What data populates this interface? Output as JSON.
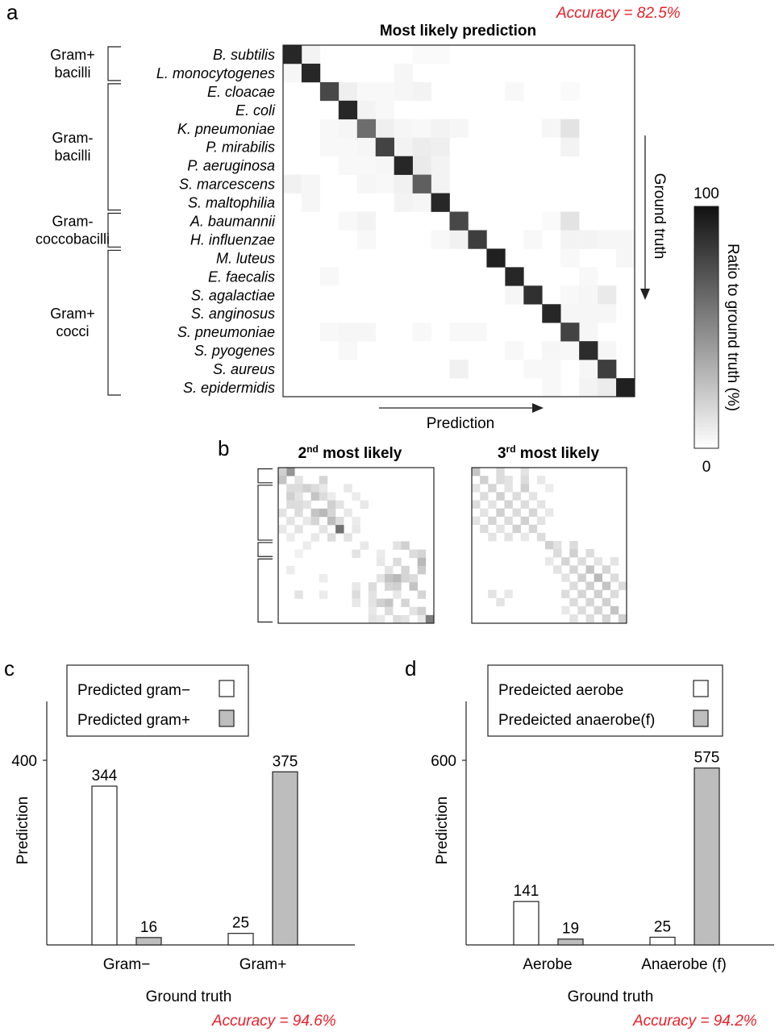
{
  "panels": {
    "a": "a",
    "b": "b",
    "c": "c",
    "d": "d"
  },
  "accuracy": {
    "a": "Accuracy = 82.5%",
    "c": "Accuracy = 94.6%",
    "d": "Accuracy = 94.2%"
  },
  "chart_data": [
    {
      "type": "heatmap",
      "title": "Most likely prediction",
      "xlabel": "Prediction",
      "ylabel": "Ground truth",
      "colorbar": {
        "label": "Ratio to ground truth (%)",
        "min": 0,
        "max": 100,
        "colors": [
          "#ffffff",
          "#111111"
        ]
      },
      "groups": [
        {
          "label": [
            "Gram+",
            "bacilli"
          ],
          "start": 0,
          "end": 1
        },
        {
          "label": [
            "Gram-",
            "bacilli"
          ],
          "start": 2,
          "end": 8
        },
        {
          "label": [
            "Gram-",
            "coccobacilli"
          ],
          "start": 9,
          "end": 10
        },
        {
          "label": [
            "Gram+",
            "cocci"
          ],
          "start": 11,
          "end": 18
        }
      ],
      "categories": [
        "B. subtilis",
        "L. monocytogenes",
        "E. cloacae",
        "E. coli",
        "K. pneumoniae",
        "P. mirabilis",
        "P. aeruginosa",
        "S. marcescens",
        "S. maltophilia",
        "A. baumannii",
        "H. influenzae",
        "M. luteus",
        "E. faecalis",
        "S. agalactiae",
        "S. anginosus",
        "S. pneumoniae",
        "S. pyogenes",
        "S. aureus",
        "S. epidermidis"
      ],
      "diagonal": [
        92,
        92,
        78,
        92,
        62,
        80,
        92,
        68,
        92,
        78,
        82,
        95,
        92,
        88,
        92,
        80,
        90,
        82,
        95
      ],
      "off_diagonal": [
        [
          0,
          1,
          5
        ],
        [
          0,
          7,
          2
        ],
        [
          0,
          8,
          2
        ],
        [
          1,
          0,
          4
        ],
        [
          1,
          6,
          4
        ],
        [
          2,
          3,
          7
        ],
        [
          2,
          4,
          3
        ],
        [
          2,
          5,
          3
        ],
        [
          2,
          6,
          4
        ],
        [
          2,
          7,
          5
        ],
        [
          2,
          12,
          3
        ],
        [
          2,
          15,
          2
        ],
        [
          3,
          4,
          5
        ],
        [
          3,
          5,
          3
        ],
        [
          4,
          2,
          3
        ],
        [
          4,
          3,
          4
        ],
        [
          4,
          5,
          7
        ],
        [
          4,
          6,
          4
        ],
        [
          4,
          7,
          3
        ],
        [
          4,
          8,
          5
        ],
        [
          4,
          9,
          4
        ],
        [
          4,
          14,
          4
        ],
        [
          4,
          15,
          12
        ],
        [
          5,
          2,
          3
        ],
        [
          5,
          3,
          3
        ],
        [
          5,
          4,
          4
        ],
        [
          5,
          6,
          5
        ],
        [
          5,
          7,
          8
        ],
        [
          5,
          8,
          7
        ],
        [
          5,
          15,
          5
        ],
        [
          6,
          3,
          3
        ],
        [
          6,
          4,
          3
        ],
        [
          6,
          5,
          4
        ],
        [
          6,
          7,
          9
        ],
        [
          6,
          8,
          5
        ],
        [
          7,
          0,
          6
        ],
        [
          7,
          1,
          4
        ],
        [
          7,
          4,
          4
        ],
        [
          7,
          5,
          3
        ],
        [
          7,
          6,
          6
        ],
        [
          7,
          8,
          5
        ],
        [
          8,
          1,
          4
        ],
        [
          8,
          6,
          5
        ],
        [
          8,
          7,
          4
        ],
        [
          9,
          3,
          3
        ],
        [
          9,
          4,
          5
        ],
        [
          9,
          14,
          2
        ],
        [
          9,
          15,
          12
        ],
        [
          10,
          4,
          3
        ],
        [
          10,
          8,
          3
        ],
        [
          10,
          9,
          6
        ],
        [
          10,
          13,
          3
        ],
        [
          10,
          15,
          5
        ],
        [
          10,
          16,
          5
        ],
        [
          10,
          17,
          4
        ],
        [
          10,
          18,
          4
        ],
        [
          11,
          15,
          3
        ],
        [
          11,
          18,
          4
        ],
        [
          12,
          2,
          3
        ],
        [
          12,
          16,
          3
        ],
        [
          13,
          12,
          4
        ],
        [
          13,
          15,
          3
        ],
        [
          13,
          16,
          4
        ],
        [
          13,
          17,
          9
        ],
        [
          14,
          15,
          4
        ],
        [
          14,
          16,
          4
        ],
        [
          14,
          17,
          4
        ],
        [
          15,
          2,
          3
        ],
        [
          15,
          3,
          4
        ],
        [
          15,
          4,
          4
        ],
        [
          15,
          7,
          3
        ],
        [
          15,
          9,
          3
        ],
        [
          15,
          10,
          3
        ],
        [
          15,
          16,
          4
        ],
        [
          16,
          3,
          3
        ],
        [
          16,
          12,
          3
        ],
        [
          16,
          14,
          4
        ],
        [
          16,
          15,
          3
        ],
        [
          16,
          17,
          4
        ],
        [
          17,
          9,
          6
        ],
        [
          17,
          13,
          3
        ],
        [
          17,
          14,
          3
        ],
        [
          17,
          16,
          4
        ],
        [
          18,
          14,
          3
        ],
        [
          18,
          16,
          5
        ],
        [
          18,
          17,
          8
        ]
      ]
    },
    {
      "type": "heatmap",
      "title": "2nd most likely",
      "title_parts": [
        "2",
        "nd",
        " most likely"
      ],
      "size": 19,
      "cells": [
        [
          0,
          1,
          45
        ],
        [
          0,
          0,
          20
        ],
        [
          1,
          0,
          25
        ],
        [
          1,
          2,
          12
        ],
        [
          1,
          5,
          18
        ],
        [
          2,
          1,
          15
        ],
        [
          2,
          2,
          15
        ],
        [
          2,
          3,
          20
        ],
        [
          2,
          4,
          15
        ],
        [
          2,
          5,
          10
        ],
        [
          2,
          8,
          10
        ],
        [
          3,
          1,
          20
        ],
        [
          3,
          2,
          12
        ],
        [
          3,
          4,
          25
        ],
        [
          3,
          5,
          15
        ],
        [
          3,
          6,
          8
        ],
        [
          3,
          9,
          8
        ],
        [
          4,
          1,
          15
        ],
        [
          4,
          2,
          15
        ],
        [
          4,
          3,
          12
        ],
        [
          4,
          6,
          20
        ],
        [
          4,
          7,
          12
        ],
        [
          4,
          10,
          10
        ],
        [
          5,
          0,
          12
        ],
        [
          5,
          2,
          15
        ],
        [
          5,
          4,
          25
        ],
        [
          5,
          5,
          30
        ],
        [
          5,
          6,
          18
        ],
        [
          5,
          8,
          10
        ],
        [
          6,
          1,
          12
        ],
        [
          6,
          3,
          10
        ],
        [
          6,
          4,
          18
        ],
        [
          6,
          6,
          28
        ],
        [
          6,
          7,
          15
        ],
        [
          6,
          9,
          8
        ],
        [
          7,
          0,
          10
        ],
        [
          7,
          2,
          12
        ],
        [
          7,
          5,
          12
        ],
        [
          7,
          7,
          60
        ],
        [
          7,
          9,
          10
        ],
        [
          8,
          1,
          8
        ],
        [
          8,
          4,
          10
        ],
        [
          8,
          6,
          15
        ],
        [
          8,
          8,
          12
        ],
        [
          9,
          3,
          8
        ],
        [
          9,
          10,
          10
        ],
        [
          9,
          14,
          12
        ],
        [
          9,
          15,
          20
        ],
        [
          10,
          2,
          6
        ],
        [
          10,
          9,
          12
        ],
        [
          10,
          12,
          8
        ],
        [
          10,
          16,
          15
        ],
        [
          10,
          17,
          18
        ],
        [
          11,
          12,
          10
        ],
        [
          11,
          14,
          15
        ],
        [
          11,
          17,
          30
        ],
        [
          12,
          1,
          8
        ],
        [
          12,
          13,
          12
        ],
        [
          12,
          15,
          18
        ],
        [
          12,
          17,
          22
        ],
        [
          13,
          5,
          8
        ],
        [
          13,
          12,
          12
        ],
        [
          13,
          13,
          25
        ],
        [
          13,
          14,
          30
        ],
        [
          13,
          15,
          18
        ],
        [
          13,
          16,
          15
        ],
        [
          14,
          9,
          10
        ],
        [
          14,
          11,
          15
        ],
        [
          14,
          13,
          18
        ],
        [
          14,
          14,
          20
        ],
        [
          14,
          16,
          25
        ],
        [
          15,
          2,
          12
        ],
        [
          15,
          5,
          8
        ],
        [
          15,
          9,
          15
        ],
        [
          15,
          11,
          12
        ],
        [
          15,
          14,
          10
        ],
        [
          15,
          17,
          18
        ],
        [
          16,
          9,
          10
        ],
        [
          16,
          11,
          12
        ],
        [
          16,
          12,
          20
        ],
        [
          16,
          13,
          25
        ],
        [
          16,
          15,
          18
        ],
        [
          17,
          11,
          10
        ],
        [
          17,
          13,
          15
        ],
        [
          17,
          16,
          12
        ],
        [
          17,
          17,
          20
        ],
        [
          18,
          11,
          12
        ],
        [
          18,
          12,
          10
        ],
        [
          18,
          14,
          15
        ],
        [
          18,
          15,
          12
        ],
        [
          18,
          17,
          10
        ],
        [
          18,
          18,
          55
        ]
      ]
    },
    {
      "type": "heatmap",
      "title": "3rd most likely",
      "title_parts": [
        "3",
        "rd",
        " most likely"
      ],
      "size": 19,
      "cells": [
        [
          0,
          0,
          25
        ],
        [
          0,
          3,
          15
        ],
        [
          0,
          6,
          12
        ],
        [
          1,
          1,
          20
        ],
        [
          1,
          3,
          15
        ],
        [
          1,
          4,
          12
        ],
        [
          1,
          6,
          15
        ],
        [
          1,
          8,
          10
        ],
        [
          2,
          0,
          12
        ],
        [
          2,
          2,
          18
        ],
        [
          2,
          4,
          12
        ],
        [
          2,
          6,
          20
        ],
        [
          2,
          9,
          8
        ],
        [
          3,
          1,
          15
        ],
        [
          3,
          3,
          20
        ],
        [
          3,
          5,
          15
        ],
        [
          3,
          7,
          12
        ],
        [
          4,
          0,
          15
        ],
        [
          4,
          2,
          12
        ],
        [
          4,
          4,
          18
        ],
        [
          4,
          6,
          15
        ],
        [
          4,
          8,
          12
        ],
        [
          5,
          1,
          12
        ],
        [
          5,
          3,
          20
        ],
        [
          5,
          5,
          15
        ],
        [
          5,
          7,
          18
        ],
        [
          5,
          9,
          10
        ],
        [
          6,
          0,
          12
        ],
        [
          6,
          2,
          18
        ],
        [
          6,
          4,
          15
        ],
        [
          6,
          6,
          20
        ],
        [
          6,
          8,
          12
        ],
        [
          7,
          1,
          15
        ],
        [
          7,
          3,
          12
        ],
        [
          7,
          5,
          20
        ],
        [
          7,
          7,
          18
        ],
        [
          8,
          2,
          12
        ],
        [
          8,
          4,
          12
        ],
        [
          8,
          6,
          10
        ],
        [
          8,
          8,
          15
        ],
        [
          9,
          9,
          20
        ],
        [
          9,
          10,
          12
        ],
        [
          9,
          12,
          15
        ],
        [
          10,
          10,
          15
        ],
        [
          10,
          12,
          20
        ],
        [
          10,
          14,
          15
        ],
        [
          11,
          9,
          10
        ],
        [
          11,
          11,
          18
        ],
        [
          11,
          13,
          15
        ],
        [
          11,
          15,
          12
        ],
        [
          11,
          17,
          12
        ],
        [
          12,
          10,
          12
        ],
        [
          12,
          12,
          18
        ],
        [
          12,
          14,
          25
        ],
        [
          12,
          16,
          18
        ],
        [
          13,
          11,
          12
        ],
        [
          13,
          13,
          20
        ],
        [
          13,
          15,
          30
        ],
        [
          13,
          17,
          15
        ],
        [
          14,
          12,
          15
        ],
        [
          14,
          14,
          20
        ],
        [
          14,
          16,
          25
        ],
        [
          14,
          18,
          15
        ],
        [
          15,
          2,
          12
        ],
        [
          15,
          4,
          10
        ],
        [
          15,
          11,
          15
        ],
        [
          15,
          13,
          18
        ],
        [
          15,
          15,
          20
        ],
        [
          15,
          17,
          15
        ],
        [
          16,
          3,
          12
        ],
        [
          16,
          12,
          15
        ],
        [
          16,
          14,
          18
        ],
        [
          16,
          16,
          20
        ],
        [
          17,
          11,
          10
        ],
        [
          17,
          13,
          15
        ],
        [
          17,
          15,
          18
        ],
        [
          17,
          17,
          25
        ],
        [
          18,
          12,
          12
        ],
        [
          18,
          14,
          15
        ],
        [
          18,
          16,
          18
        ],
        [
          18,
          18,
          20
        ]
      ]
    },
    {
      "type": "bar",
      "categories": [
        "Gram−",
        "Gram+"
      ],
      "series": [
        {
          "name": "Predicted gram−",
          "values": [
            344,
            25
          ],
          "color": "#ffffff"
        },
        {
          "name": "Predicted gram+",
          "values": [
            16,
            375
          ],
          "color": "#bdbdbd"
        }
      ],
      "xlabel": "Ground truth",
      "ylabel": "Prediction",
      "yticks": [
        400
      ],
      "ylim": [
        0,
        400
      ],
      "legend": "top"
    },
    {
      "type": "bar",
      "categories": [
        "Aerobe",
        "Anaerobe (f)"
      ],
      "series": [
        {
          "name": "Predeicted aerobe",
          "values": [
            141,
            25
          ],
          "color": "#ffffff"
        },
        {
          "name": "Predeicted anaerobe(f)",
          "values": [
            19,
            575
          ],
          "color": "#bdbdbd"
        }
      ],
      "xlabel": "Ground truth",
      "ylabel": "Prediction",
      "yticks": [
        600
      ],
      "ylim": [
        0,
        600
      ],
      "legend": "top"
    }
  ]
}
